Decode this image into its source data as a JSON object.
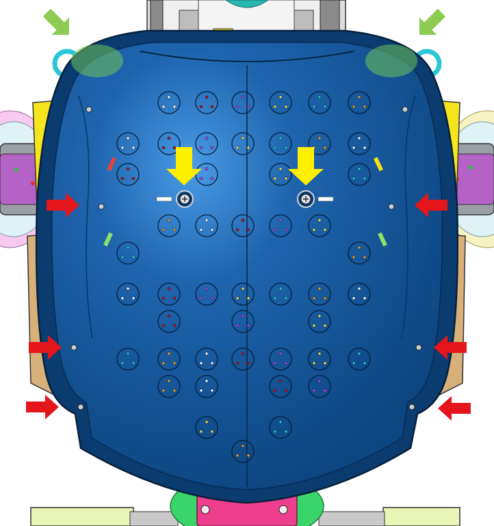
{
  "figure": {
    "subject": "robot-chest-shell-cad-render",
    "colors": {
      "shell": "#0f4c8a",
      "shell_edge": "#0a2f5a",
      "highlight": "#3d8fdc",
      "arm_yellow": "#f5e51c",
      "arm_purple": "#b462c6",
      "arm_gray": "#9aa0a6",
      "green_part": "#39c74a",
      "tan_part": "#d7b07a",
      "pink_part": "#ee3f8e",
      "pale_green": "#e6f7b4",
      "screw_gray": "#c8ced6"
    },
    "markers": {
      "green_arrows": 2,
      "yellow_arrows": 2,
      "red_arrows": 6,
      "green_highlight_ovals": 2,
      "arrow_colors": {
        "green": "#8dcb52",
        "yellow": "#ffef00",
        "red": "#e5151c"
      },
      "oval_color": "#6fc35a"
    },
    "mount_holes": {
      "columns": 7,
      "rows": 7,
      "pin_colors": [
        "#ffffff",
        "#c81414",
        "#c044e0",
        "#ffe14a",
        "#2ad0d0",
        "#f0a020"
      ]
    }
  }
}
